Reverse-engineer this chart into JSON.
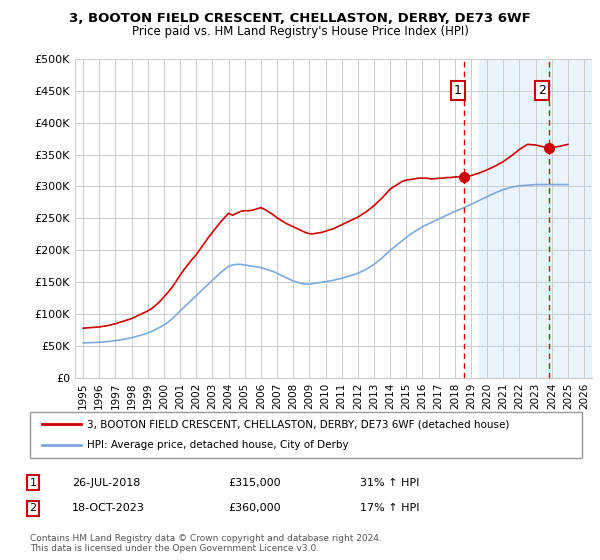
{
  "title1": "3, BOOTON FIELD CRESCENT, CHELLASTON, DERBY, DE73 6WF",
  "title2": "Price paid vs. HM Land Registry's House Price Index (HPI)",
  "legend_red": "3, BOOTON FIELD CRESCENT, CHELLASTON, DERBY, DE73 6WF (detached house)",
  "legend_blue": "HPI: Average price, detached house, City of Derby",
  "annotation1_label": "1",
  "annotation1_date": "26-JUL-2018",
  "annotation1_price": "£315,000",
  "annotation1_hpi": "31% ↑ HPI",
  "annotation2_label": "2",
  "annotation2_date": "18-OCT-2023",
  "annotation2_price": "£360,000",
  "annotation2_hpi": "17% ↑ HPI",
  "footer": "Contains HM Land Registry data © Crown copyright and database right 2024.\nThis data is licensed under the Open Government Licence v3.0.",
  "red_color": "#cc0000",
  "blue_color": "#7aaadd",
  "vline_color": "#cc0000",
  "shade_color": "#ddeeff",
  "grid_color": "#cccccc",
  "bg_color": "#ffffff",
  "xlim_start": 1994.5,
  "xlim_end": 2026.5,
  "ylim_min": 0,
  "ylim_max": 500000,
  "yticks": [
    0,
    50000,
    100000,
    150000,
    200000,
    250000,
    300000,
    350000,
    400000,
    450000,
    500000
  ],
  "ytick_labels": [
    "£0",
    "£50K",
    "£100K",
    "£150K",
    "£200K",
    "£250K",
    "£300K",
    "£350K",
    "£400K",
    "£450K",
    "£500K"
  ],
  "xticks": [
    1995,
    1996,
    1997,
    1998,
    1999,
    2000,
    2001,
    2002,
    2003,
    2004,
    2005,
    2006,
    2007,
    2008,
    2009,
    2010,
    2011,
    2012,
    2013,
    2014,
    2015,
    2016,
    2017,
    2018,
    2019,
    2020,
    2021,
    2022,
    2023,
    2024,
    2025,
    2026
  ],
  "marker1_x": 2018.57,
  "marker1_y": 315000,
  "marker2_x": 2023.8,
  "marker2_y": 360000,
  "vline1_x": 2018.57,
  "vline2_x": 2023.8,
  "shade_start": 2019.5,
  "shade_end": 2026.5,
  "hatch_start": 2024.5,
  "red_x": [
    1995.0,
    1995.25,
    1995.5,
    1995.75,
    1996.0,
    1996.25,
    1996.5,
    1996.75,
    1997.0,
    1997.25,
    1997.5,
    1997.75,
    1998.0,
    1998.25,
    1998.5,
    1998.75,
    1999.0,
    1999.25,
    1999.5,
    1999.75,
    2000.0,
    2000.25,
    2000.5,
    2000.75,
    2001.0,
    2001.25,
    2001.5,
    2001.75,
    2002.0,
    2002.25,
    2002.5,
    2002.75,
    2003.0,
    2003.25,
    2003.5,
    2003.75,
    2004.0,
    2004.25,
    2004.5,
    2004.75,
    2005.0,
    2005.25,
    2005.5,
    2005.75,
    2006.0,
    2006.25,
    2006.5,
    2006.75,
    2007.0,
    2007.25,
    2007.5,
    2007.75,
    2008.0,
    2008.25,
    2008.5,
    2008.75,
    2009.0,
    2009.25,
    2009.5,
    2009.75,
    2010.0,
    2010.25,
    2010.5,
    2010.75,
    2011.0,
    2011.25,
    2011.5,
    2011.75,
    2012.0,
    2012.25,
    2012.5,
    2012.75,
    2013.0,
    2013.25,
    2013.5,
    2013.75,
    2014.0,
    2014.25,
    2014.5,
    2014.75,
    2015.0,
    2015.25,
    2015.5,
    2015.75,
    2016.0,
    2016.25,
    2016.5,
    2016.75,
    2017.0,
    2017.25,
    2017.5,
    2017.75,
    2018.0,
    2018.25,
    2018.57,
    2019.0,
    2019.5,
    2020.0,
    2020.5,
    2021.0,
    2021.5,
    2022.0,
    2022.5,
    2023.0,
    2023.5,
    2023.8,
    2024.0,
    2024.5,
    2025.0
  ],
  "red_y": [
    78000,
    78500,
    79000,
    79500,
    80000,
    81000,
    82000,
    83500,
    85000,
    87000,
    89000,
    91000,
    93000,
    96000,
    99000,
    102000,
    105000,
    109000,
    114000,
    120000,
    127000,
    134000,
    142000,
    151000,
    161000,
    170000,
    178000,
    186000,
    193000,
    202000,
    211000,
    220000,
    228000,
    236000,
    244000,
    251000,
    258000,
    255000,
    258000,
    261000,
    262000,
    262000,
    263000,
    265000,
    267000,
    264000,
    260000,
    256000,
    251000,
    247000,
    243000,
    240000,
    237000,
    234000,
    231000,
    228000,
    226000,
    226000,
    227000,
    228000,
    230000,
    232000,
    234000,
    237000,
    240000,
    243000,
    246000,
    249000,
    252000,
    256000,
    260000,
    265000,
    270000,
    276000,
    282000,
    289000,
    296000,
    300000,
    304000,
    308000,
    310000,
    311000,
    312000,
    313000,
    313000,
    313000,
    312000,
    312000,
    313000,
    313000,
    314000,
    314000,
    315000,
    315000,
    315000,
    317000,
    321000,
    326000,
    332000,
    339000,
    348000,
    358000,
    366000,
    365000,
    362000,
    360000,
    361000,
    363000,
    366000
  ],
  "blue_x": [
    1995.0,
    1995.25,
    1995.5,
    1995.75,
    1996.0,
    1996.25,
    1996.5,
    1996.75,
    1997.0,
    1997.25,
    1997.5,
    1997.75,
    1998.0,
    1998.25,
    1998.5,
    1998.75,
    1999.0,
    1999.25,
    1999.5,
    1999.75,
    2000.0,
    2000.25,
    2000.5,
    2000.75,
    2001.0,
    2001.25,
    2001.5,
    2001.75,
    2002.0,
    2002.25,
    2002.5,
    2002.75,
    2003.0,
    2003.25,
    2003.5,
    2003.75,
    2004.0,
    2004.25,
    2004.5,
    2004.75,
    2005.0,
    2005.25,
    2005.5,
    2005.75,
    2006.0,
    2006.25,
    2006.5,
    2006.75,
    2007.0,
    2007.25,
    2007.5,
    2007.75,
    2008.0,
    2008.25,
    2008.5,
    2008.75,
    2009.0,
    2009.25,
    2009.5,
    2009.75,
    2010.0,
    2010.25,
    2010.5,
    2010.75,
    2011.0,
    2011.25,
    2011.5,
    2011.75,
    2012.0,
    2012.25,
    2012.5,
    2012.75,
    2013.0,
    2013.25,
    2013.5,
    2013.75,
    2014.0,
    2014.25,
    2014.5,
    2014.75,
    2015.0,
    2015.25,
    2015.5,
    2015.75,
    2016.0,
    2016.25,
    2016.5,
    2016.75,
    2017.0,
    2017.25,
    2017.5,
    2017.75,
    2018.0,
    2018.5,
    2019.0,
    2019.5,
    2020.0,
    2020.5,
    2021.0,
    2021.5,
    2022.0,
    2022.5,
    2023.0,
    2023.5,
    2024.0,
    2024.5,
    2025.0
  ],
  "blue_y": [
    55000,
    55200,
    55400,
    55700,
    56000,
    56500,
    57000,
    57800,
    58600,
    59500,
    60500,
    61800,
    63100,
    64800,
    66500,
    68500,
    70500,
    73000,
    76000,
    79500,
    83000,
    87500,
    92500,
    98500,
    105000,
    111000,
    117000,
    123000,
    129000,
    135000,
    141000,
    147000,
    153000,
    159000,
    165000,
    170000,
    175000,
    177000,
    178000,
    178000,
    177000,
    176000,
    175000,
    174000,
    173000,
    171000,
    169000,
    167000,
    164000,
    161000,
    158000,
    155000,
    152000,
    150000,
    148000,
    147000,
    147000,
    148000,
    149000,
    150000,
    151000,
    152000,
    153000,
    155000,
    156000,
    158000,
    160000,
    162000,
    164000,
    167000,
    170000,
    174000,
    178000,
    183000,
    188000,
    194000,
    200000,
    205000,
    210000,
    215000,
    220000,
    225000,
    229000,
    233000,
    237000,
    240000,
    243000,
    246000,
    249000,
    252000,
    255000,
    258000,
    261000,
    266000,
    272000,
    278000,
    284000,
    290000,
    295000,
    299000,
    301000,
    302000,
    303000,
    303000,
    303000,
    303000,
    303000
  ]
}
